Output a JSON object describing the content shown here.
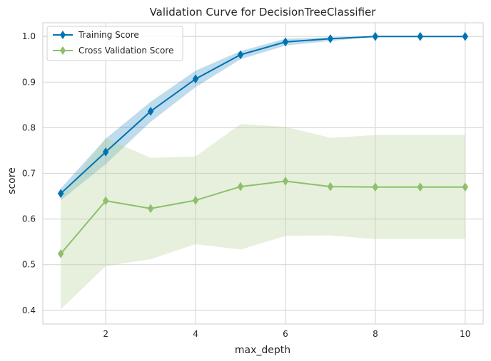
{
  "chart_data": {
    "type": "line",
    "title": "Validation Curve for DecisionTreeClassifier",
    "xlabel": "max_depth",
    "ylabel": "score",
    "xlim": [
      0.6,
      10.4
    ],
    "ylim": [
      0.37,
      1.03
    ],
    "xticks": [
      2,
      4,
      6,
      8,
      10
    ],
    "yticks": [
      0.4,
      0.5,
      0.6,
      0.7,
      0.8,
      0.9,
      1.0
    ],
    "ytick_labels": [
      "0.4",
      "0.5",
      "0.6",
      "0.7",
      "0.8",
      "0.9",
      "1.0"
    ],
    "grid": true,
    "legend_position": "top-left",
    "x": [
      1,
      2,
      3,
      4,
      5,
      6,
      7,
      8,
      9,
      10
    ],
    "series": [
      {
        "name": "Training Score",
        "color": "#0072b2",
        "band_color": "#0072b2",
        "marker": "diamond",
        "values": [
          0.656,
          0.747,
          0.836,
          0.907,
          0.96,
          0.988,
          0.995,
          1.0,
          1.0,
          1.0
        ],
        "upper": [
          0.667,
          0.776,
          0.857,
          0.925,
          0.968,
          0.995,
          0.998,
          1.0,
          1.0,
          1.0
        ],
        "lower": [
          0.641,
          0.72,
          0.813,
          0.889,
          0.95,
          0.98,
          0.99,
          1.0,
          1.0,
          1.0
        ]
      },
      {
        "name": "Cross Validation Score",
        "color": "#8fbf6a",
        "band_color": "#b7d39a",
        "marker": "diamond",
        "values": [
          0.524,
          0.64,
          0.623,
          0.641,
          0.671,
          0.683,
          0.671,
          0.67,
          0.67,
          0.67
        ],
        "upper": [
          0.648,
          0.777,
          0.734,
          0.737,
          0.808,
          0.802,
          0.778,
          0.784,
          0.784,
          0.784
        ],
        "lower": [
          0.402,
          0.497,
          0.512,
          0.545,
          0.533,
          0.563,
          0.564,
          0.556,
          0.556,
          0.556
        ]
      }
    ]
  }
}
